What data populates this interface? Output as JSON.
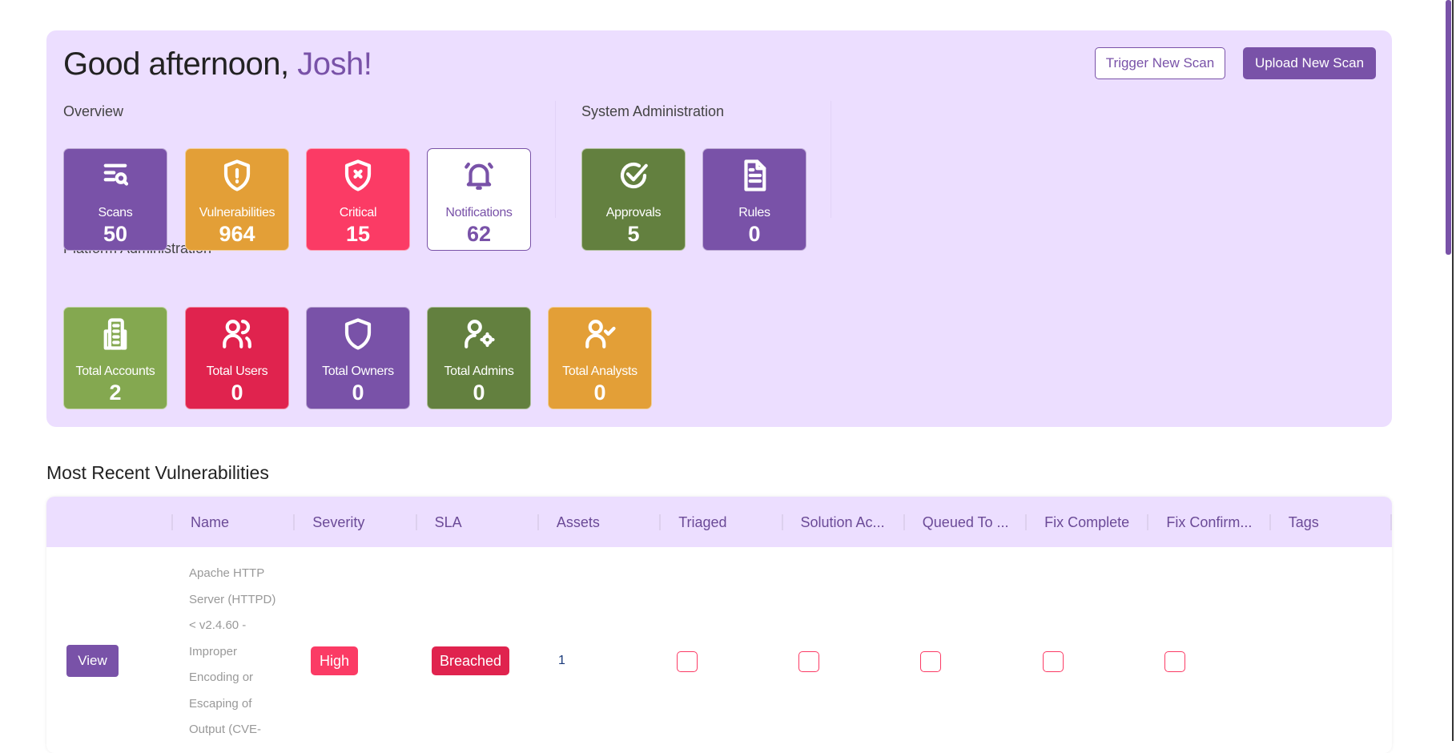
{
  "greeting": {
    "prefix": "Good afternoon, ",
    "name": "Josh!"
  },
  "buttons": {
    "trigger": "Trigger New Scan",
    "upload": "Upload New Scan"
  },
  "overview": {
    "title": "Overview",
    "cards": [
      {
        "label": "Scans",
        "value": "50",
        "icon": "scan-search-icon",
        "color": "#7952a8"
      },
      {
        "label": "Vulnerabilities",
        "value": "964",
        "icon": "shield-alert-icon",
        "color": "#e39f37"
      },
      {
        "label": "Critical",
        "value": "15",
        "icon": "shield-x-icon",
        "color": "#fb3b65"
      },
      {
        "label": "Notifications",
        "value": "62",
        "icon": "bell-icon",
        "color": "#ffffff"
      }
    ]
  },
  "system": {
    "title": "System Administration",
    "cards": [
      {
        "label": "Approvals",
        "value": "5",
        "icon": "check-circle-icon",
        "color": "#63803f"
      },
      {
        "label": "Rules",
        "value": "0",
        "icon": "document-icon",
        "color": "#7952a8"
      }
    ]
  },
  "platform": {
    "title": "Platform Administration",
    "cards": [
      {
        "label": "Total Accounts",
        "value": "2",
        "icon": "building-icon",
        "color": "#84a850"
      },
      {
        "label": "Total Users",
        "value": "0",
        "icon": "users-icon",
        "color": "#e0234e"
      },
      {
        "label": "Total Owners",
        "value": "0",
        "icon": "shield-icon",
        "color": "#7952a8"
      },
      {
        "label": "Total Admins",
        "value": "0",
        "icon": "user-gear-icon",
        "color": "#63803f"
      },
      {
        "label": "Total Analysts",
        "value": "0",
        "icon": "user-check-icon",
        "color": "#e39f37"
      }
    ]
  },
  "recent": {
    "title": "Most Recent Vulnerabilities",
    "columns": [
      "Name",
      "Severity",
      "SLA",
      "Assets",
      "Triaged",
      "Solution Ac...",
      "Queued To ...",
      "Fix Complete",
      "Fix Confirm...",
      "Tags"
    ],
    "rows": [
      {
        "view": "View",
        "name": "Apache HTTP Server (HTTPD) < v2.4.60 - Improper Encoding or Escaping of Output (CVE-",
        "severity": "High",
        "sla": "Breached",
        "assets": "1",
        "triaged": false,
        "solution": false,
        "queued": false,
        "fix_complete": false,
        "fix_confirmed": false
      }
    ]
  },
  "colors": {
    "accent": "#7952a8",
    "panel": "#ecdeff",
    "high": "#fb3b65",
    "breached": "#e0234e"
  }
}
